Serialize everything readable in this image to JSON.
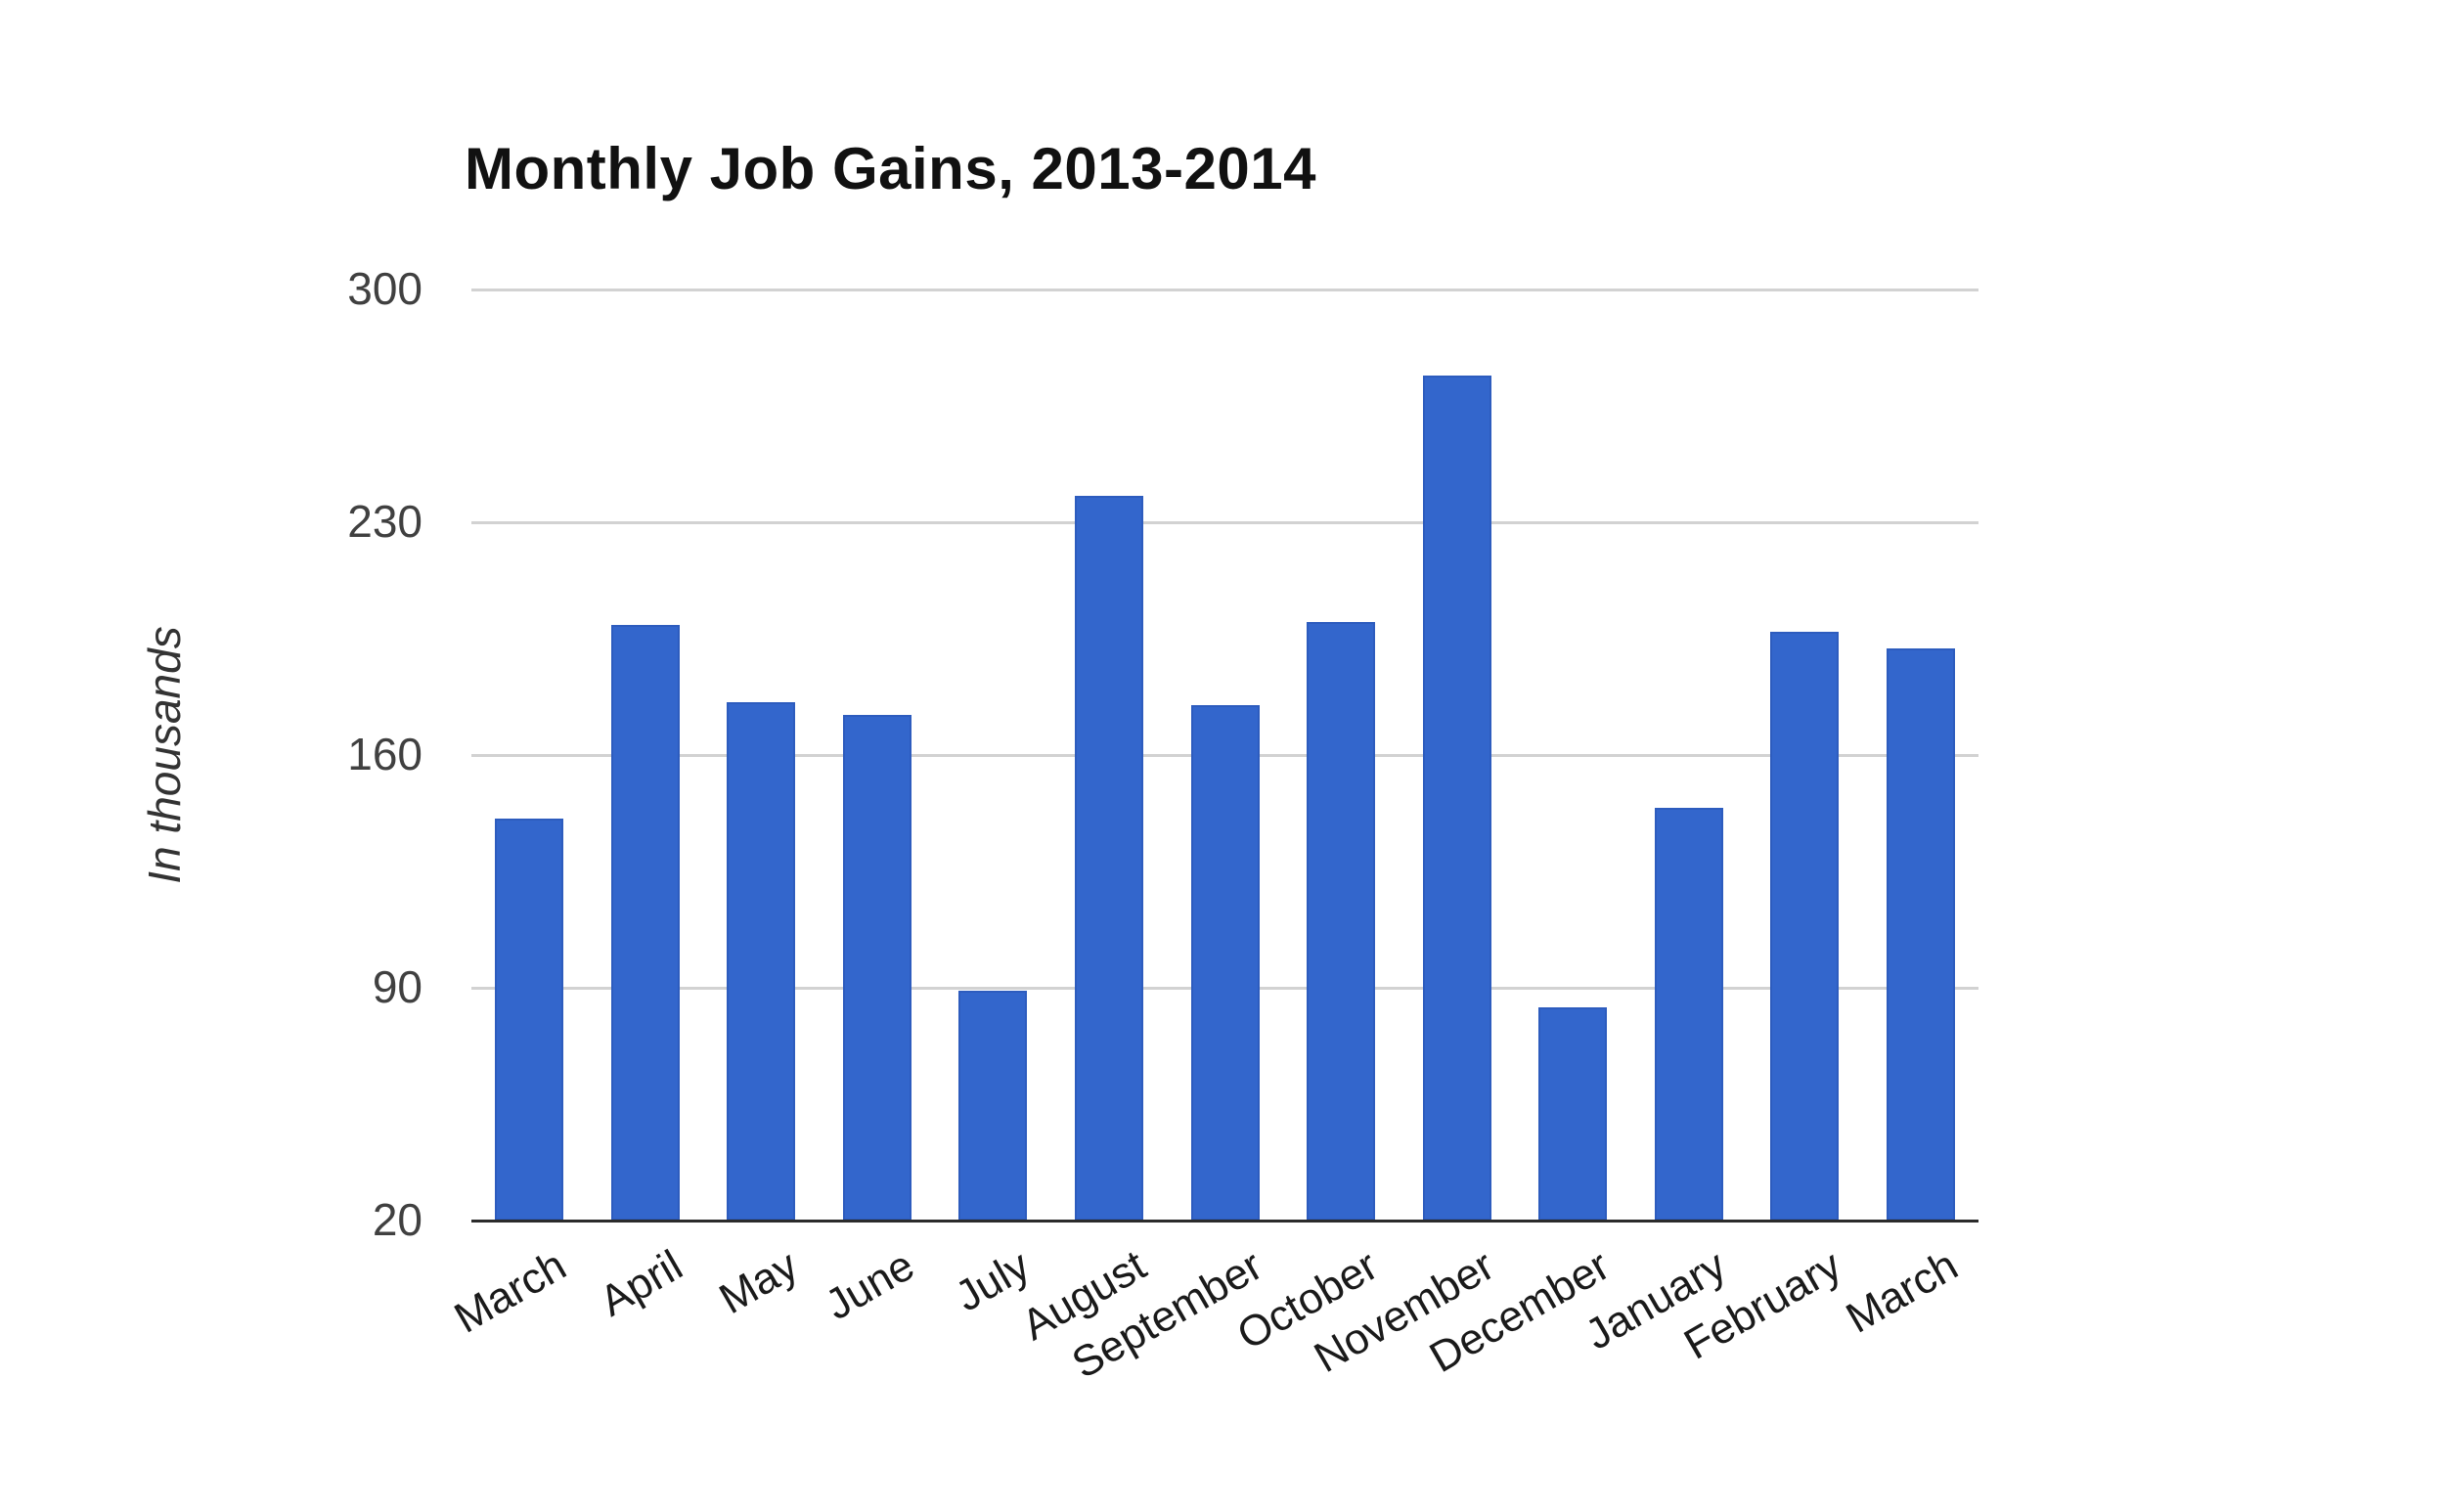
{
  "chart_data": {
    "type": "bar",
    "title": "Monthly Job Gains, 2013-2014",
    "ylabel": "In thousands",
    "xlabel": "",
    "categories": [
      "March",
      "April",
      "May",
      "June",
      "July",
      "August",
      "September",
      "October",
      "November",
      "December",
      "January",
      "February",
      "March"
    ],
    "values": [
      141,
      199,
      176,
      172,
      89,
      238,
      175,
      200,
      274,
      84,
      144,
      197,
      192
    ],
    "yticks": [
      20,
      90,
      160,
      230,
      300
    ],
    "ylim": [
      20,
      300
    ],
    "grid": true,
    "legend_position": "none",
    "x_label_angle_deg": -30,
    "colors": {
      "bar_fill": "#3366cc",
      "bar_border": "#2d5cbe",
      "gridline": "#d2d2d2",
      "axis_line": "#2b2b2b",
      "title_text": "#111111",
      "ytick_text": "#404040",
      "xtick_text": "#1a1a1a",
      "background": "#ffffff"
    }
  }
}
